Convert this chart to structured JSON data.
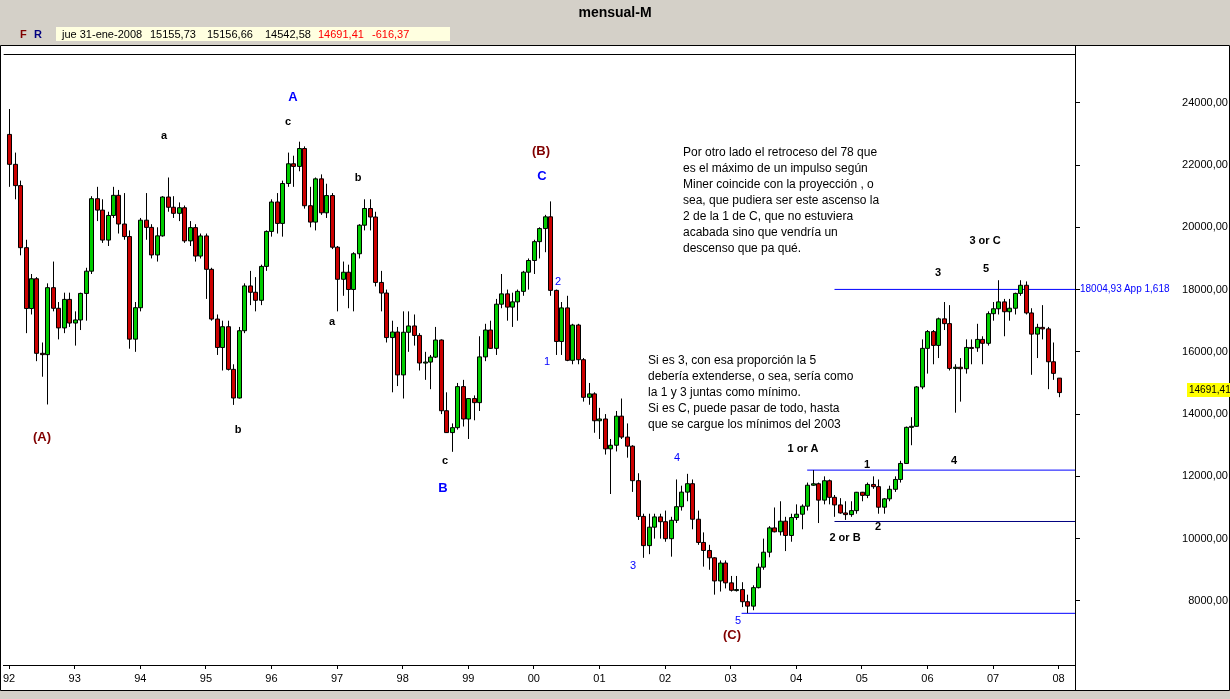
{
  "chart_data": {
    "type": "candlestick",
    "title": "mensual-M",
    "x": [
      "1992-01",
      "1992-02",
      "1992-03",
      "1992-04",
      "1992-05",
      "1992-06",
      "1992-07",
      "1992-08",
      "1992-09",
      "1992-10",
      "1992-11",
      "1992-12",
      "1993-01",
      "1993-02",
      "1993-03",
      "1993-04",
      "1993-05",
      "1993-06",
      "1993-07",
      "1993-08",
      "1993-09",
      "1993-10",
      "1993-11",
      "1993-12",
      "1994-01",
      "1994-02",
      "1994-03",
      "1994-04",
      "1994-05",
      "1994-06",
      "1994-07",
      "1994-08",
      "1994-09",
      "1994-10",
      "1994-11",
      "1994-12",
      "1995-01",
      "1995-02",
      "1995-03",
      "1995-04",
      "1995-05",
      "1995-06",
      "1995-07",
      "1995-08",
      "1995-09",
      "1995-10",
      "1995-11",
      "1995-12",
      "1996-01",
      "1996-02",
      "1996-03",
      "1996-04",
      "1996-05",
      "1996-06",
      "1996-07",
      "1996-08",
      "1996-09",
      "1996-10",
      "1996-11",
      "1996-12",
      "1997-01",
      "1997-02",
      "1997-03",
      "1997-04",
      "1997-05",
      "1997-06",
      "1997-07",
      "1997-08",
      "1997-09",
      "1997-10",
      "1997-11",
      "1997-12",
      "1998-01",
      "1998-02",
      "1998-03",
      "1998-04",
      "1998-05",
      "1998-06",
      "1998-07",
      "1998-08",
      "1998-09",
      "1998-10",
      "1998-11",
      "1998-12",
      "1999-01",
      "1999-02",
      "1999-03",
      "1999-04",
      "1999-05",
      "1999-06",
      "1999-07",
      "1999-08",
      "1999-09",
      "1999-10",
      "1999-11",
      "1999-12",
      "2000-01",
      "2000-02",
      "2000-03",
      "2000-04",
      "2000-05",
      "2000-06",
      "2000-07",
      "2000-08",
      "2000-09",
      "2000-10",
      "2000-11",
      "2000-12",
      "2001-01",
      "2001-02",
      "2001-03",
      "2001-04",
      "2001-05",
      "2001-06",
      "2001-07",
      "2001-08",
      "2001-09",
      "2001-10",
      "2001-11",
      "2001-12",
      "2002-01",
      "2002-02",
      "2002-03",
      "2002-04",
      "2002-05",
      "2002-06",
      "2002-07",
      "2002-08",
      "2002-09",
      "2002-10",
      "2002-11",
      "2002-12",
      "2003-01",
      "2003-02",
      "2003-03",
      "2003-04",
      "2003-05",
      "2003-06",
      "2003-07",
      "2003-08",
      "2003-09",
      "2003-10",
      "2003-11",
      "2003-12",
      "2004-01",
      "2004-02",
      "2004-03",
      "2004-04",
      "2004-05",
      "2004-06",
      "2004-07",
      "2004-08",
      "2004-09",
      "2004-10",
      "2004-11",
      "2004-12",
      "2005-01",
      "2005-02",
      "2005-03",
      "2005-04",
      "2005-05",
      "2005-06",
      "2005-07",
      "2005-08",
      "2005-09",
      "2005-10",
      "2005-11",
      "2005-12",
      "2006-01",
      "2006-02",
      "2006-03",
      "2006-04",
      "2006-05",
      "2006-06",
      "2006-07",
      "2006-08",
      "2006-09",
      "2006-10",
      "2006-11",
      "2006-12",
      "2007-01",
      "2007-02",
      "2007-03",
      "2007-04",
      "2007-05",
      "2007-06",
      "2007-07",
      "2007-08",
      "2007-09",
      "2007-10",
      "2007-11",
      "2007-12",
      "2008-01"
    ],
    "ohlc": [
      [
        22984,
        23800,
        21300,
        22023
      ],
      [
        22023,
        22400,
        20900,
        21339
      ],
      [
        21339,
        21500,
        19100,
        19346
      ],
      [
        19346,
        19600,
        16600,
        17391
      ],
      [
        17391,
        18500,
        17200,
        18348
      ],
      [
        18348,
        18400,
        15700,
        15952
      ],
      [
        15952,
        16300,
        15200,
        15910
      ],
      [
        15910,
        18200,
        14309,
        18061
      ],
      [
        18061,
        18900,
        17300,
        17399
      ],
      [
        17399,
        17600,
        16400,
        16768
      ],
      [
        16768,
        17900,
        16600,
        17684
      ],
      [
        17684,
        17900,
        16800,
        16925
      ],
      [
        16925,
        17300,
        16200,
        17024
      ],
      [
        17024,
        17900,
        16700,
        17876
      ],
      [
        17876,
        18700,
        17000,
        18591
      ],
      [
        18591,
        21000,
        18500,
        20919
      ],
      [
        20919,
        21300,
        20200,
        20552
      ],
      [
        20552,
        20900,
        19500,
        19590
      ],
      [
        19590,
        20500,
        19400,
        20380
      ],
      [
        20380,
        21300,
        20300,
        21027
      ],
      [
        21027,
        21200,
        19800,
        20106
      ],
      [
        20106,
        21100,
        19600,
        19703
      ],
      [
        19703,
        19900,
        16100,
        16408
      ],
      [
        16408,
        17600,
        16000,
        17417
      ],
      [
        17417,
        20300,
        17300,
        20229
      ],
      [
        20229,
        21100,
        19600,
        19997
      ],
      [
        19997,
        20100,
        19000,
        19112
      ],
      [
        19112,
        20000,
        18900,
        19725
      ],
      [
        19725,
        21000,
        19700,
        20973
      ],
      [
        20973,
        21600,
        20500,
        20644
      ],
      [
        20644,
        21000,
        20300,
        20449
      ],
      [
        20449,
        20800,
        20200,
        20629
      ],
      [
        20629,
        20700,
        19500,
        19564
      ],
      [
        19564,
        20200,
        19400,
        19990
      ],
      [
        19990,
        20100,
        18900,
        19076
      ],
      [
        19076,
        19800,
        19000,
        19723
      ],
      [
        19723,
        19800,
        17700,
        18650
      ],
      [
        18650,
        18700,
        17000,
        17053
      ],
      [
        17053,
        17200,
        15900,
        16140
      ],
      [
        16140,
        17000,
        15400,
        16807
      ],
      [
        16807,
        17000,
        15400,
        15437
      ],
      [
        15437,
        15600,
        14295,
        14517
      ],
      [
        14517,
        16800,
        14500,
        16678
      ],
      [
        16678,
        18200,
        16600,
        18117
      ],
      [
        18117,
        18600,
        17500,
        17913
      ],
      [
        17913,
        18400,
        17300,
        17655
      ],
      [
        17655,
        18800,
        17500,
        18744
      ],
      [
        18744,
        19900,
        18600,
        19868
      ],
      [
        19868,
        20900,
        19700,
        20813
      ],
      [
        20813,
        21100,
        19800,
        20125
      ],
      [
        20125,
        21500,
        19700,
        21407
      ],
      [
        21407,
        22400,
        21300,
        22041
      ],
      [
        22041,
        22300,
        21300,
        21956
      ],
      [
        21956,
        22750,
        21800,
        22531
      ],
      [
        22531,
        22600,
        20600,
        20693
      ],
      [
        20693,
        21300,
        20000,
        20167
      ],
      [
        20167,
        21600,
        19900,
        21556
      ],
      [
        21556,
        21700,
        20400,
        20466
      ],
      [
        20466,
        21400,
        20300,
        21020
      ],
      [
        21020,
        21100,
        19300,
        19361
      ],
      [
        19361,
        19400,
        17300,
        18330
      ],
      [
        18330,
        18900,
        17800,
        18557
      ],
      [
        18557,
        18800,
        17400,
        18003
      ],
      [
        18003,
        19200,
        17300,
        19151
      ],
      [
        19151,
        20100,
        19000,
        20068
      ],
      [
        20068,
        20900,
        19900,
        20604
      ],
      [
        20604,
        20900,
        19900,
        20331
      ],
      [
        20331,
        20500,
        18100,
        18229
      ],
      [
        18229,
        18600,
        17300,
        17888
      ],
      [
        17888,
        18000,
        16300,
        16458
      ],
      [
        16458,
        17000,
        14700,
        16636
      ],
      [
        16636,
        16800,
        14900,
        15259
      ],
      [
        15259,
        17300,
        14500,
        16628
      ],
      [
        16628,
        17300,
        16000,
        16831
      ],
      [
        16831,
        17200,
        16200,
        16527
      ],
      [
        16527,
        16600,
        15400,
        15641
      ],
      [
        15641,
        16000,
        15100,
        15671
      ],
      [
        15671,
        15900,
        14800,
        15830
      ],
      [
        15830,
        16800,
        15800,
        16379
      ],
      [
        16379,
        16400,
        14000,
        14108
      ],
      [
        14108,
        14700,
        13400,
        13406
      ],
      [
        13406,
        13700,
        12788,
        13564
      ],
      [
        13564,
        15000,
        13500,
        14883
      ],
      [
        14883,
        15100,
        13600,
        13842
      ],
      [
        13842,
        14500,
        13200,
        14499
      ],
      [
        14499,
        14600,
        13800,
        14368
      ],
      [
        14368,
        16500,
        14100,
        15837
      ],
      [
        15837,
        16900,
        15700,
        16701
      ],
      [
        16701,
        17000,
        16100,
        16112
      ],
      [
        16112,
        17700,
        15900,
        17530
      ],
      [
        17530,
        18500,
        17400,
        17862
      ],
      [
        17862,
        18000,
        17000,
        17437
      ],
      [
        17437,
        17900,
        16800,
        17605
      ],
      [
        17605,
        18000,
        17000,
        17942
      ],
      [
        17942,
        18600,
        17800,
        18558
      ],
      [
        18558,
        19000,
        18000,
        18934
      ],
      [
        18934,
        19600,
        18500,
        19540
      ],
      [
        19540,
        20000,
        19000,
        19960
      ],
      [
        19960,
        20400,
        19200,
        20337
      ],
      [
        20337,
        20833,
        17800,
        17974
      ],
      [
        17974,
        18000,
        15900,
        16332
      ],
      [
        16332,
        17600,
        15900,
        17411
      ],
      [
        17411,
        17800,
        15700,
        15727
      ],
      [
        15727,
        16900,
        15600,
        16861
      ],
      [
        16861,
        16900,
        15600,
        15747
      ],
      [
        15747,
        15800,
        14400,
        14539
      ],
      [
        14539,
        15000,
        14300,
        14649
      ],
      [
        14649,
        14700,
        13400,
        13786
      ],
      [
        13786,
        14200,
        13200,
        13843
      ],
      [
        13843,
        14000,
        12700,
        12883
      ],
      [
        12883,
        13200,
        11433,
        12999
      ],
      [
        12999,
        14100,
        12800,
        13934
      ],
      [
        13934,
        14500,
        13200,
        13262
      ],
      [
        13262,
        13700,
        12600,
        12969
      ],
      [
        12969,
        13000,
        11500,
        11861
      ],
      [
        11861,
        12100,
        10600,
        10713
      ],
      [
        10713,
        10800,
        9383,
        9775
      ],
      [
        9775,
        10800,
        9500,
        10367
      ],
      [
        10367,
        10800,
        10000,
        10697
      ],
      [
        10697,
        10800,
        10000,
        10543
      ],
      [
        10543,
        10900,
        9900,
        9998
      ],
      [
        9998,
        10700,
        9420,
        10588
      ],
      [
        10588,
        11900,
        10500,
        11025
      ],
      [
        11025,
        11700,
        10900,
        11493
      ],
      [
        11493,
        12081,
        11200,
        11764
      ],
      [
        11764,
        11900,
        10300,
        10622
      ],
      [
        10622,
        10900,
        9800,
        9877
      ],
      [
        9877,
        10200,
        9100,
        9619
      ],
      [
        9619,
        9800,
        9000,
        9383
      ],
      [
        9383,
        9400,
        8200,
        8640
      ],
      [
        8640,
        9300,
        8300,
        9216
      ],
      [
        9216,
        9300,
        8400,
        8579
      ],
      [
        8579,
        8800,
        8300,
        8340
      ],
      [
        8340,
        8800,
        8300,
        8363
      ],
      [
        8363,
        8600,
        7800,
        7973
      ],
      [
        7973,
        8200,
        7607,
        7831
      ],
      [
        7831,
        8500,
        7700,
        8425
      ],
      [
        8425,
        9200,
        8400,
        9083
      ],
      [
        9083,
        10000,
        9000,
        9563
      ],
      [
        9563,
        10400,
        9400,
        10344
      ],
      [
        10344,
        11000,
        10200,
        10219
      ],
      [
        10219,
        11200,
        10100,
        10560
      ],
      [
        10560,
        10700,
        9600,
        10101
      ],
      [
        10101,
        10800,
        9900,
        10677
      ],
      [
        10677,
        11100,
        10600,
        10784
      ],
      [
        10784,
        11100,
        10300,
        11042
      ],
      [
        11042,
        11800,
        10900,
        11715
      ],
      [
        11715,
        12200,
        11700,
        11762
      ],
      [
        11762,
        11800,
        10500,
        11236
      ],
      [
        11236,
        12000,
        11100,
        11859
      ],
      [
        11859,
        11900,
        11100,
        11326
      ],
      [
        11326,
        11400,
        10700,
        11082
      ],
      [
        11082,
        11300,
        10800,
        10824
      ],
      [
        10824,
        11200,
        10600,
        10771
      ],
      [
        10771,
        11200,
        10700,
        10899
      ],
      [
        10899,
        11500,
        10800,
        11489
      ],
      [
        11489,
        11500,
        11200,
        11388
      ],
      [
        11388,
        11800,
        11300,
        11740
      ],
      [
        11740,
        12000,
        11600,
        11669
      ],
      [
        11669,
        11900,
        10800,
        11009
      ],
      [
        11009,
        11300,
        10800,
        11277
      ],
      [
        11277,
        11700,
        11200,
        11584
      ],
      [
        11584,
        12000,
        11500,
        11900
      ],
      [
        11900,
        12500,
        11800,
        12414
      ],
      [
        12414,
        13600,
        12400,
        13574
      ],
      [
        13574,
        13900,
        13000,
        13607
      ],
      [
        13607,
        14900,
        13600,
        14872
      ],
      [
        14872,
        16400,
        14800,
        16111
      ],
      [
        16111,
        16700,
        15300,
        16650
      ],
      [
        16650,
        16700,
        15600,
        16206
      ],
      [
        16206,
        17100,
        15800,
        17060
      ],
      [
        17060,
        17600,
        16700,
        16906
      ],
      [
        16906,
        17500,
        15400,
        15467
      ],
      [
        15467,
        15600,
        14045,
        15505
      ],
      [
        15505,
        15800,
        14400,
        15457
      ],
      [
        15457,
        16400,
        15300,
        16141
      ],
      [
        16141,
        16400,
        15600,
        16128
      ],
      [
        16128,
        16900,
        16000,
        16399
      ],
      [
        16399,
        16500,
        15600,
        16274
      ],
      [
        16274,
        17300,
        16200,
        17226
      ],
      [
        17226,
        17600,
        17000,
        17383
      ],
      [
        17383,
        18300,
        17200,
        17604
      ],
      [
        17604,
        17700,
        16500,
        17288
      ],
      [
        17288,
        17700,
        17000,
        17400
      ],
      [
        17400,
        17900,
        17200,
        17876
      ],
      [
        17876,
        18300,
        17800,
        18138
      ],
      [
        18138,
        18262,
        17200,
        17249
      ],
      [
        17249,
        17400,
        15262,
        16569
      ],
      [
        16569,
        16900,
        15800,
        16786
      ],
      [
        16786,
        17500,
        16400,
        16737
      ],
      [
        16737,
        16800,
        14800,
        15681
      ],
      [
        15681,
        16300,
        15100,
        15308
      ],
      [
        15155.73,
        15156.66,
        14542.58,
        14691.41
      ]
    ],
    "colors": [
      "#cc0000",
      "#cc0000",
      "#cc0000",
      "#cc0000",
      "#00cc00",
      "#cc0000",
      "#cc0000",
      "#00cc00",
      "#cc0000",
      "#cc0000",
      "#00cc00",
      "#cc0000",
      "#00cc00",
      "#00cc00",
      "#00cc00",
      "#00cc00",
      "#cc0000",
      "#cc0000",
      "#00cc00",
      "#00cc00",
      "#cc0000",
      "#cc0000",
      "#cc0000",
      "#00cc00",
      "#00cc00",
      "#cc0000",
      "#cc0000",
      "#00cc00",
      "#00cc00",
      "#cc0000",
      "#cc0000",
      "#00cc00",
      "#cc0000",
      "#00cc00",
      "#cc0000",
      "#00cc00",
      "#cc0000",
      "#cc0000",
      "#cc0000",
      "#00cc00",
      "#cc0000",
      "#cc0000",
      "#00cc00",
      "#00cc00",
      "#cc0000",
      "#cc0000",
      "#00cc00",
      "#00cc00",
      "#00cc00",
      "#cc0000",
      "#00cc00",
      "#00cc00",
      "#cc0000",
      "#00cc00",
      "#cc0000",
      "#cc0000",
      "#00cc00",
      "#cc0000",
      "#00cc00",
      "#cc0000",
      "#cc0000",
      "#00cc00",
      "#cc0000",
      "#00cc00",
      "#00cc00",
      "#00cc00",
      "#cc0000",
      "#cc0000",
      "#cc0000",
      "#cc0000",
      "#00cc00",
      "#cc0000",
      "#00cc00",
      "#00cc00",
      "#cc0000",
      "#cc0000",
      "#00cc00",
      "#00cc00",
      "#00cc00",
      "#cc0000",
      "#cc0000",
      "#00cc00",
      "#00cc00",
      "#cc0000",
      "#00cc00",
      "#cc0000",
      "#00cc00",
      "#00cc00",
      "#cc0000",
      "#00cc00",
      "#00cc00",
      "#cc0000",
      "#00cc00",
      "#00cc00",
      "#00cc00",
      "#00cc00",
      "#00cc00",
      "#00cc00",
      "#00cc00",
      "#cc0000",
      "#cc0000",
      "#00cc00",
      "#cc0000",
      "#00cc00",
      "#cc0000",
      "#cc0000",
      "#00cc00",
      "#cc0000",
      "#00cc00",
      "#cc0000",
      "#00cc00",
      "#00cc00",
      "#cc0000",
      "#cc0000",
      "#cc0000",
      "#cc0000",
      "#cc0000",
      "#00cc00",
      "#00cc00",
      "#cc0000",
      "#cc0000",
      "#00cc00",
      "#00cc00",
      "#00cc00",
      "#00cc00",
      "#cc0000",
      "#cc0000",
      "#cc0000",
      "#cc0000",
      "#cc0000",
      "#00cc00",
      "#cc0000",
      "#cc0000",
      "#00cc00",
      "#cc0000",
      "#cc0000",
      "#00cc00",
      "#00cc00",
      "#00cc00",
      "#00cc00",
      "#cc0000",
      "#00cc00",
      "#cc0000",
      "#00cc00",
      "#00cc00",
      "#00cc00",
      "#00cc00",
      "#00cc00",
      "#cc0000",
      "#00cc00",
      "#cc0000",
      "#cc0000",
      "#cc0000",
      "#cc0000",
      "#00cc00",
      "#00cc00",
      "#cc0000",
      "#00cc00",
      "#cc0000",
      "#cc0000",
      "#00cc00",
      "#00cc00",
      "#00cc00",
      "#00cc00",
      "#00cc00",
      "#00cc00",
      "#00cc00",
      "#00cc00",
      "#00cc00",
      "#cc0000",
      "#00cc00",
      "#cc0000",
      "#cc0000",
      "#00cc00",
      "#cc0000",
      "#00cc00",
      "#cc0000",
      "#00cc00",
      "#cc0000",
      "#00cc00",
      "#00cc00",
      "#00cc00",
      "#cc0000",
      "#00cc00",
      "#00cc00",
      "#00cc00",
      "#cc0000",
      "#cc0000",
      "#00cc00",
      "#cc0000",
      "#cc0000",
      "#cc0000",
      "#cc0000"
    ],
    "series": [
      {
        "type": "line",
        "name": "18004,93 App 1,618",
        "color": "#0000ff",
        "x": [
          "2004-08",
          "2008-04"
        ],
        "values": [
          18004.93,
          18004.93
        ]
      },
      {
        "type": "line",
        "color": "#0000ff",
        "x": [
          "2004-03",
          "2008-04"
        ],
        "values": [
          12200,
          12200
        ]
      },
      {
        "type": "line",
        "color": "#000080",
        "x": [
          "2004-08",
          "2008-04"
        ],
        "values": [
          10550,
          10550
        ]
      },
      {
        "type": "line",
        "color": "#0000ff",
        "x": [
          "2003-03",
          "2008-04"
        ],
        "values": [
          7600,
          7600
        ]
      }
    ],
    "xlim": [
      "1991-12",
      "2008-04"
    ],
    "xticks": [
      {
        "value": "1992-01",
        "label": "92"
      },
      {
        "value": "1993-01",
        "label": "93"
      },
      {
        "value": "1994-01",
        "label": "94"
      },
      {
        "value": "1995-01",
        "label": "95"
      },
      {
        "value": "1996-01",
        "label": "96"
      },
      {
        "value": "1997-01",
        "label": "97"
      },
      {
        "value": "1998-01",
        "label": "98"
      },
      {
        "value": "1999-01",
        "label": "99"
      },
      {
        "value": "2000-01",
        "label": "00"
      },
      {
        "value": "2001-01",
        "label": "01"
      },
      {
        "value": "2002-01",
        "label": "02"
      },
      {
        "value": "2003-01",
        "label": "03"
      },
      {
        "value": "2004-01",
        "label": "04"
      },
      {
        "value": "2005-01",
        "label": "05"
      },
      {
        "value": "2006-01",
        "label": "06"
      },
      {
        "value": "2007-01",
        "label": "07"
      },
      {
        "value": "2008-01",
        "label": "08"
      }
    ],
    "ylim": [
      5940,
      25580
    ],
    "yticks": [
      {
        "value": 8000,
        "label": "8000,00"
      },
      {
        "value": 10000,
        "label": "10000,00"
      },
      {
        "value": 12000,
        "label": "12000,00"
      },
      {
        "value": 14000,
        "label": "14000,00"
      },
      {
        "value": 16000,
        "label": "16000,00"
      },
      {
        "value": 18000,
        "label": "18000,00"
      },
      {
        "value": 20000,
        "label": "20000,00"
      },
      {
        "value": 22000,
        "label": "22000,00"
      },
      {
        "value": 24000,
        "label": "24000,00"
      }
    ],
    "annotations": [
      "F",
      "R",
      "jue 31-ene-2008",
      "15155,73",
      "15156,66",
      "14542,58",
      "14691,41",
      "-616,37",
      "Por otro lado el retroceso del 78 que\nes el máximo de un impulso según\nMiner coincide con la proyección , o\nsea, que pudiera ser este ascenso la\n2 de la 1 de C, que no estuviera\nacabada sino que vendría un\ndescenso que pa qué.",
      "Si es 3, con esa proporción la 5\ndebería extenderse, o sea, sería como\nla 1 y 3 juntas como mínimo.\nSi es C, puede pasar de todo, hasta\nque se cargue los mínimos del 2003",
      "14691,41",
      "A",
      "a",
      "c",
      "b",
      "a",
      "b",
      "(A)",
      "(B)",
      "C",
      "c",
      "B",
      "2",
      "1",
      "4",
      "3",
      "5",
      "(C)",
      "1 or A",
      "2 or B",
      "1",
      "2",
      "3",
      "5",
      "3 or C",
      "4"
    ]
  }
}
